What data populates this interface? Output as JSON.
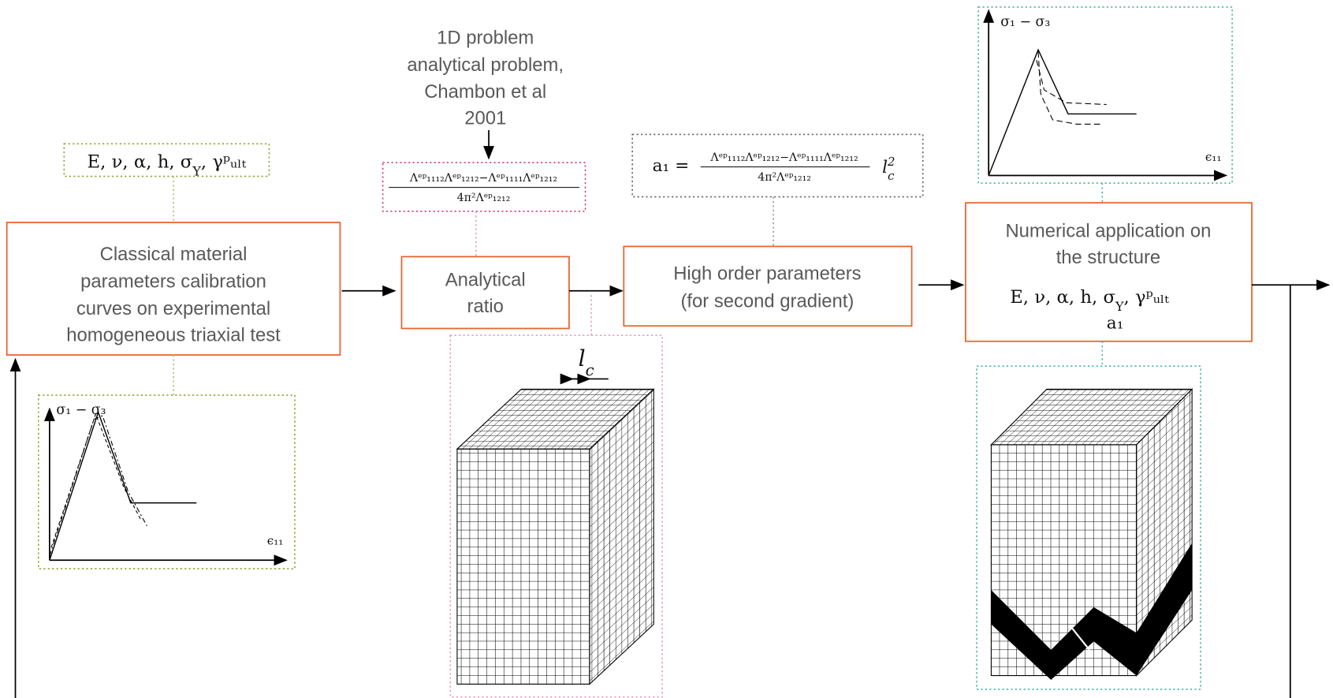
{
  "steps": [
    {
      "label": [
        "Classical material",
        "parameters calibration",
        "curves on experimental",
        "homogeneous triaxial test"
      ]
    },
    {
      "label": [
        "Analytical",
        "ratio"
      ]
    },
    {
      "label": [
        "High order parameters",
        "(for second gradient)"
      ]
    },
    {
      "label": [
        "Numerical application on",
        "the structure"
      ],
      "params": [
        "E, ν, α, h, σ",
        "Y",
        ", γᵖᵤₗₜ"
      ],
      "extra": "a₁"
    }
  ],
  "material_params": [
    "E, ν, α, h, σ",
    "Y",
    ", γᵖᵤₗₜ"
  ],
  "reference": [
    "1D problem",
    "analytical problem,",
    "Chambon et al",
    "2001"
  ],
  "ratio_formula": {
    "numerator": "Λᵉᵖ₁₁₁₂Λᵉᵖ₁₂₁₂−Λᵉᵖ₁₁₁₁Λᵉᵖ₁₂₁₂",
    "denominator": "4π²Λᵉᵖ₁₂₁₂"
  },
  "a1_formula": {
    "lhs": "a₁ =",
    "numerator": "Λᵉᵖ₁₁₁₂Λᵉᵖ₁₂₁₂−Λᵉᵖ₁₁₁₁Λᵉᵖ₁₂₁₂",
    "denominator": "4π²Λᵉᵖ₁₂₁₂",
    "factor": [
      "l",
      "c",
      "2"
    ]
  },
  "length_label": [
    "l",
    "c"
  ],
  "calibration_plot": {
    "y_label": "σ₁ − σ₃",
    "x_label": "ϵ₁₁"
  },
  "structure_plot": {
    "y_label": "σ₁ − σ₃",
    "x_label": "ϵ₁₁"
  }
}
